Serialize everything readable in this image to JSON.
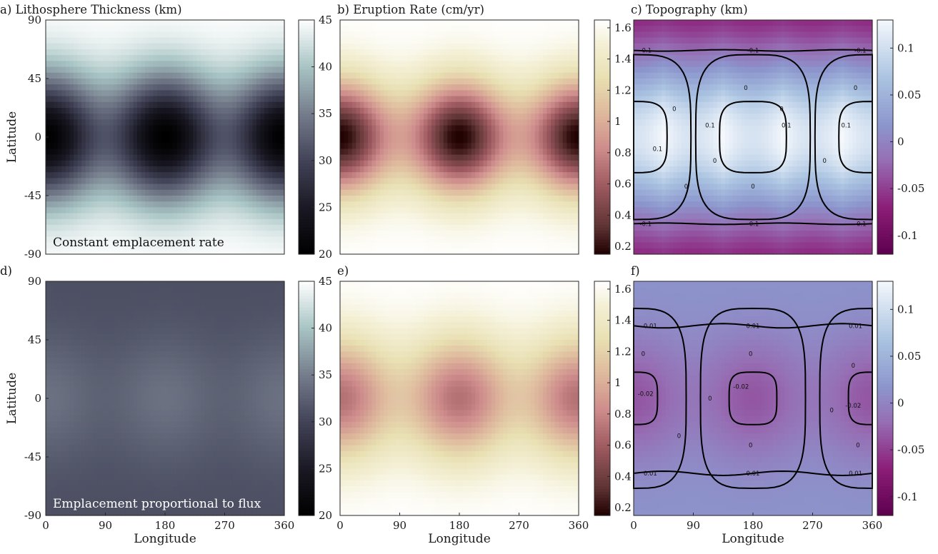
{
  "chart_data": [
    {
      "panel": "a)",
      "title": "Lithosphere Thickness (km)",
      "type": "heatmap",
      "field": "litho_high",
      "colormap": "bone",
      "clim": [
        20,
        45
      ],
      "colorbar_ticks": [
        20,
        25,
        30,
        35,
        40,
        45
      ],
      "annotation": "Constant emplacement rate",
      "xlim": [
        0,
        360
      ],
      "ylim": [
        -90,
        90
      ],
      "ylabel": "Latitude",
      "xlabel": "",
      "yticks": [
        90,
        45,
        0,
        -45,
        -90
      ],
      "xticks": []
    },
    {
      "panel": "b)",
      "title": "Eruption Rate (cm/yr)",
      "type": "heatmap",
      "field": "erupt_high",
      "colormap": "pink",
      "clim": [
        0.15,
        1.65
      ],
      "colorbar_ticks": [
        0.2,
        0.4,
        0.6,
        0.8,
        1,
        1.2,
        1.4,
        1.6
      ],
      "xlim": [
        0,
        360
      ],
      "ylim": [
        -90,
        90
      ],
      "xticks": [],
      "yticks": []
    },
    {
      "panel": "c)",
      "title": "Topography (km)",
      "type": "heatmap",
      "field": "topo_high",
      "colormap": "purple",
      "clim": [
        -0.12,
        0.13
      ],
      "colorbar_ticks": [
        0.1,
        0.05,
        0,
        -0.05,
        -0.1
      ],
      "contours": [
        {
          "level": "-0.1",
          "lines": "lat"
        },
        {
          "level": "0",
          "lines": "closed"
        },
        {
          "level": "0.1",
          "lines": "closed"
        }
      ],
      "contour_labels": [
        "-0.1",
        "-0.1",
        "-0.1",
        "-0.1",
        "-0.1",
        "-0.1",
        "0",
        "0",
        "0",
        "0",
        "0",
        "0",
        "0",
        "0",
        "0.1",
        "0.1",
        "0.1",
        "0.1"
      ],
      "xlim": [
        0,
        360
      ],
      "ylim": [
        -90,
        90
      ],
      "xticks": [],
      "yticks": []
    },
    {
      "panel": "d)",
      "title": "",
      "type": "heatmap",
      "field": "litho_low",
      "colormap": "bone",
      "clim": [
        20,
        45
      ],
      "colorbar_ticks": [
        20,
        25,
        30,
        35,
        40,
        45
      ],
      "annotation": "Emplacement proportional to flux",
      "xlim": [
        0,
        360
      ],
      "ylim": [
        -90,
        90
      ],
      "xlabel": "Longitude",
      "ylabel": "Latitude",
      "xticks": [
        0,
        90,
        180,
        270,
        360
      ],
      "yticks": [
        90,
        45,
        0,
        -45,
        -90
      ]
    },
    {
      "panel": "e)",
      "title": "",
      "type": "heatmap",
      "field": "erupt_low",
      "colormap": "pink",
      "clim": [
        0.15,
        1.65
      ],
      "colorbar_ticks": [
        0.2,
        0.4,
        0.6,
        0.8,
        1,
        1.2,
        1.4,
        1.6
      ],
      "xlim": [
        0,
        360
      ],
      "ylim": [
        -90,
        90
      ],
      "xlabel": "Longitude",
      "xticks": [
        0,
        90,
        180,
        270,
        360
      ],
      "yticks": []
    },
    {
      "panel": "f)",
      "title": "",
      "type": "heatmap",
      "field": "topo_low",
      "colormap": "purple",
      "clim": [
        -0.12,
        0.13
      ],
      "colorbar_ticks": [
        0.1,
        0.05,
        0,
        -0.05,
        -0.1
      ],
      "contours": [
        {
          "level": "0.01",
          "lines": "lat"
        },
        {
          "level": "0",
          "lines": "closed"
        },
        {
          "level": "-0.02",
          "lines": "closed"
        }
      ],
      "contour_labels": [
        "0.01",
        "0.01",
        "0.01",
        "0.01",
        "0.01",
        "0.01",
        "0",
        "0",
        "0",
        "0",
        "0",
        "0",
        "0",
        "0",
        "-0.02",
        "-0.02",
        "-0.02"
      ],
      "xlim": [
        0,
        360
      ],
      "ylim": [
        -90,
        90
      ],
      "xlabel": "Longitude",
      "xticks": [
        0,
        90,
        180,
        270,
        360
      ],
      "yticks": []
    }
  ]
}
